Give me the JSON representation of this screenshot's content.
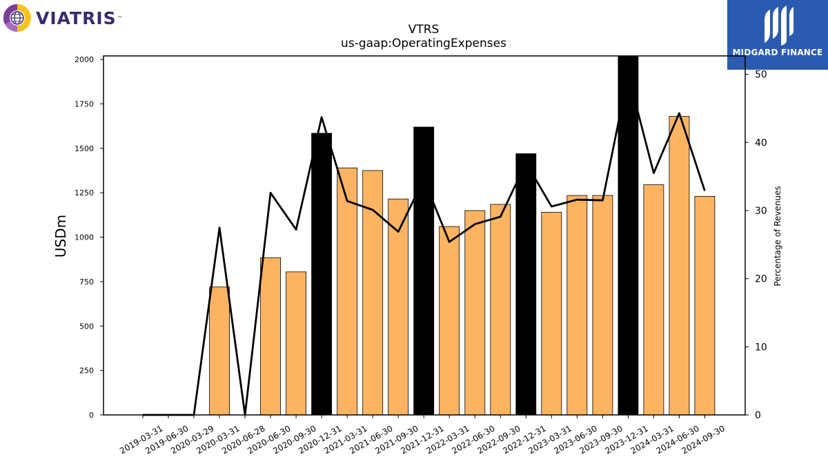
{
  "logos": {
    "left_text": "VIATRIS",
    "left_tm": "™",
    "left_icon": "globe-icon",
    "right_text": "MIDGARD FINANCE",
    "right_icon": "midgard-m-icon"
  },
  "chart_data": {
    "type": "bar",
    "title": "VTRS",
    "subtitle": "us-gaap:OperatingExpenses",
    "ylabel": "USDm",
    "y2label": "Percentage of Revenues",
    "ylim": [
      0,
      2020
    ],
    "y2lim": [
      0,
      52.7
    ],
    "yticks": [
      0,
      250,
      500,
      750,
      1000,
      1250,
      1500,
      1750,
      2000
    ],
    "y2ticks": [
      0,
      10,
      20,
      30,
      40,
      50
    ],
    "categories": [
      "2019-03-31",
      "2019-06-30",
      "2020-03-29",
      "2020-03-31",
      "2020-06-28",
      "2020-06-30",
      "2020-09-30",
      "2020-12-31",
      "2021-03-31",
      "2021-06-30",
      "2021-09-30",
      "2021-12-31",
      "2022-03-31",
      "2022-06-30",
      "2022-09-30",
      "2022-12-31",
      "2023-03-31",
      "2023-06-30",
      "2023-09-30",
      "2023-12-31",
      "2024-03-31",
      "2024-06-30",
      "2024-09-30"
    ],
    "series": [
      {
        "type": "bar",
        "values": [
          0,
          0,
          0,
          720,
          0,
          885,
          805,
          1585,
          1390,
          1375,
          1215,
          1620,
          1060,
          1150,
          1185,
          1470,
          1140,
          1235,
          1235,
          2020,
          1295,
          1680,
          1230
        ],
        "highlight": [
          false,
          false,
          false,
          false,
          false,
          false,
          false,
          true,
          false,
          false,
          false,
          true,
          false,
          false,
          false,
          true,
          false,
          false,
          false,
          true,
          false,
          false,
          false
        ]
      },
      {
        "type": "line",
        "axis": "right",
        "values": [
          0,
          0,
          0,
          27.5,
          0,
          32.6,
          27.2,
          43.7,
          31.4,
          30.1,
          26.9,
          34.6,
          25.4,
          28,
          29.1,
          37,
          30.6,
          31.6,
          31.5,
          50,
          35.5,
          44.3,
          32.9
        ]
      }
    ],
    "colors": {
      "bar": "#fdb462",
      "bar_highlight": "#000000",
      "line": "#000000",
      "viatris_purple": "#3a2a6e",
      "viatris_orange": "#f2a11f",
      "midgard_blue": "#2a5bb0"
    },
    "grid": false
  }
}
